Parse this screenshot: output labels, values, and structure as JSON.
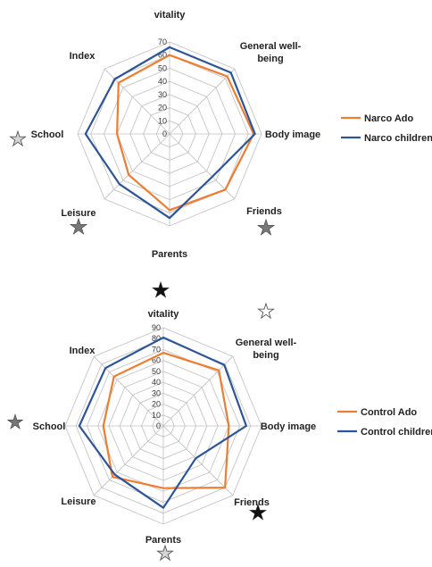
{
  "chart_data": [
    {
      "type": "radar",
      "categories": [
        "vitality",
        "General well-being",
        "Body image",
        "Friends",
        "Parents",
        "Leisure",
        "School",
        "Index"
      ],
      "ticks": [
        "0",
        "10",
        "20",
        "30",
        "40",
        "50",
        "60",
        "70"
      ],
      "rlim": [
        0,
        70
      ],
      "series": [
        {
          "name": "Narco Ado",
          "color": "#ED7D31",
          "values": [
            60,
            62,
            64,
            60,
            58,
            44,
            40,
            55
          ]
        },
        {
          "name": "Narco children",
          "color": "#2E5597",
          "values": [
            66,
            66,
            65,
            46,
            64,
            54,
            64,
            59
          ]
        }
      ],
      "legend": "right",
      "markers": [
        {
          "near": "School",
          "symbol": "☆",
          "fill": "#d4d4d4"
        },
        {
          "near": "Leisure",
          "symbol": "★",
          "fill": "#777777"
        },
        {
          "near": "Friends",
          "symbol": "★",
          "fill": "#777777"
        }
      ]
    },
    {
      "type": "radar",
      "categories": [
        "vitality",
        "General well-being",
        "Body image",
        "Friends",
        "Parents",
        "Leisure",
        "School",
        "Index"
      ],
      "ticks": [
        "0",
        "10",
        "20",
        "30",
        "40",
        "50",
        "60",
        "70",
        "80",
        "90"
      ],
      "rlim": [
        0,
        90
      ],
      "series": [
        {
          "name": "Control Ado",
          "color": "#ED7D31",
          "values": [
            67,
            72,
            60,
            80,
            57,
            66,
            55,
            64
          ]
        },
        {
          "name": "Control children",
          "color": "#2E5597",
          "values": [
            81,
            79,
            76,
            42,
            75,
            63,
            77,
            75
          ]
        }
      ],
      "legend": "right",
      "markers": [
        {
          "near": "vitality",
          "symbol": "★",
          "fill": "#111111"
        },
        {
          "near": "General well-being",
          "symbol": "☆",
          "fill": "#ffffff"
        },
        {
          "near": "School",
          "symbol": "★",
          "fill": "#777777"
        },
        {
          "near": "Friends",
          "symbol": "★",
          "fill": "#111111"
        },
        {
          "near": "Parents",
          "symbol": "☆",
          "fill": "#d4d4d4"
        }
      ]
    }
  ]
}
